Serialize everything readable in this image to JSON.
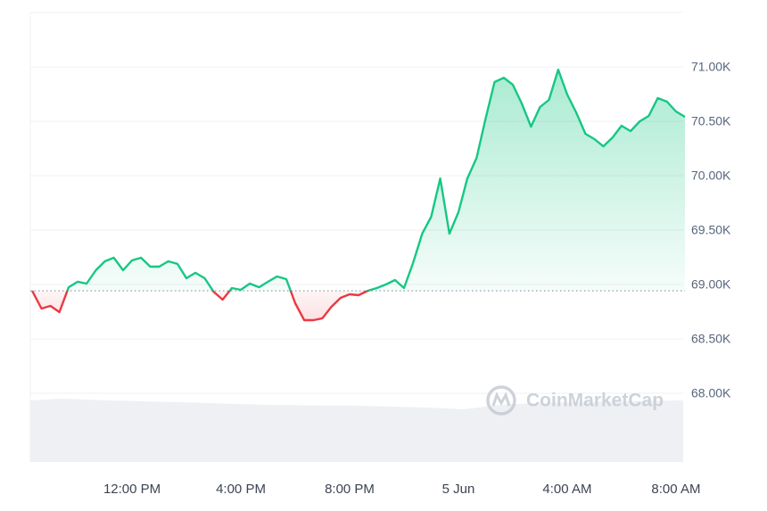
{
  "chart_data": {
    "type": "line",
    "x": [
      8.33,
      8.67,
      9.0,
      9.33,
      9.67,
      10.0,
      10.33,
      10.67,
      11.0,
      11.33,
      11.67,
      12.0,
      12.33,
      12.67,
      13.0,
      13.33,
      13.67,
      14.0,
      14.33,
      14.67,
      15.0,
      15.33,
      15.67,
      16.0,
      16.33,
      16.67,
      17.0,
      17.33,
      17.67,
      18.0,
      18.33,
      18.67,
      19.0,
      19.33,
      19.67,
      20.0,
      20.33,
      20.67,
      21.0,
      21.33,
      21.67,
      22.0,
      22.33,
      22.67,
      23.0,
      23.33,
      23.67,
      24.0,
      24.33,
      24.67,
      25.0,
      25.33,
      25.67,
      26.0,
      26.33,
      26.67,
      27.0,
      27.33,
      27.67,
      28.0,
      28.33,
      28.67,
      29.0,
      29.33,
      29.67,
      30.0,
      30.33,
      30.67,
      31.0,
      31.33,
      31.67,
      32.0,
      32.33
    ],
    "series": [
      {
        "color": "#16c784",
        "values": [
          68942,
          68779,
          68803,
          68746,
          68975,
          69025,
          69008,
          69131,
          69213,
          69246,
          69131,
          69221,
          69246,
          69164,
          69164,
          69213,
          69189,
          69057,
          69107,
          69057,
          68934,
          68861,
          68967,
          68951,
          69008,
          68975,
          69025,
          69074,
          69049,
          68828,
          68672,
          68672,
          68689,
          68795,
          68877,
          68910,
          68902,
          68943,
          68967,
          69000,
          69041,
          68967,
          69197,
          69467,
          69623,
          69975,
          69467,
          69664,
          69975,
          70164,
          70525,
          70861,
          70900,
          70836,
          70664,
          70451,
          70631,
          70697,
          70975,
          70746,
          70582,
          70385,
          70336,
          70270,
          70352,
          70459,
          70410,
          70500,
          70549,
          70713,
          70680,
          70590,
          70541
        ]
      }
    ],
    "below_color": "#ea3943",
    "reference_value": 68942,
    "xlim": [
      8.26,
      32.33
    ],
    "xticks": [
      {
        "value": 12,
        "label": "12:00 PM"
      },
      {
        "value": 16,
        "label": "4:00 PM"
      },
      {
        "value": 20,
        "label": "8:00 PM"
      },
      {
        "value": 24,
        "label": "5 Jun"
      },
      {
        "value": 28,
        "label": "4:00 AM"
      },
      {
        "value": 32,
        "label": "8:00 AM"
      }
    ],
    "ylim": [
      68000,
      71500
    ],
    "yticks": [
      {
        "value": 68000,
        "label": "68.00K"
      },
      {
        "value": 68500,
        "label": "68.50K"
      },
      {
        "value": 69000,
        "label": "69.00K"
      },
      {
        "value": 69500,
        "label": "69.50K"
      },
      {
        "value": 70000,
        "label": "70.00K"
      },
      {
        "value": 70500,
        "label": "70.50K"
      },
      {
        "value": 71000,
        "label": "71.00K"
      }
    ],
    "grid": true,
    "watermark": "CoinMarketCap"
  }
}
